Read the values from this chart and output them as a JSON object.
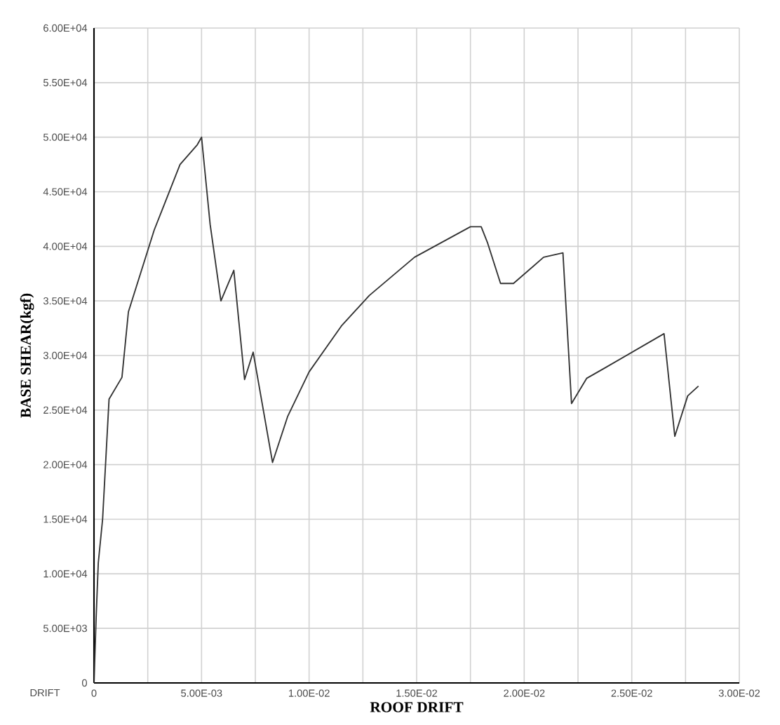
{
  "chart_data": {
    "type": "line",
    "xlabel": "ROOF DRIFT",
    "ylabel": "BASE SHEAR(kgf)",
    "annotations": [
      "DRIFT"
    ],
    "grid": true,
    "marker": "none",
    "line_style": "solid",
    "xlim": [
      0,
      0.03
    ],
    "ylim": [
      0,
      60000
    ],
    "xticks": [
      0,
      {
        "value": 0.0025,
        "label": null
      },
      {
        "value": 0.005,
        "label": "5.00E-03"
      },
      {
        "value": 0.0075,
        "label": null
      },
      {
        "value": 0.01,
        "label": "1.00E-02"
      },
      {
        "value": 0.0125,
        "label": null
      },
      {
        "value": 0.015,
        "label": "1.50E-02"
      },
      {
        "value": 0.0175,
        "label": null
      },
      {
        "value": 0.02,
        "label": "2.00E-02"
      },
      {
        "value": 0.0225,
        "label": null
      },
      {
        "value": 0.025,
        "label": "2.50E-02"
      },
      {
        "value": 0.0275,
        "label": null
      },
      {
        "value": 0.03,
        "label": "3.00E-02"
      }
    ],
    "yticks": [
      0,
      {
        "value": 5000,
        "label": "5.00E+03"
      },
      {
        "value": 10000,
        "label": "1.00E+04"
      },
      {
        "value": 15000,
        "label": "1.50E+04"
      },
      {
        "value": 20000,
        "label": "2.00E+04"
      },
      {
        "value": 25000,
        "label": "2.50E+04"
      },
      {
        "value": 30000,
        "label": "3.00E+04"
      },
      {
        "value": 35000,
        "label": "3.50E+04"
      },
      {
        "value": 40000,
        "label": "4.00E+04"
      },
      {
        "value": 45000,
        "label": "4.50E+04"
      },
      {
        "value": 50000,
        "label": "5.00E+04"
      },
      {
        "value": 55000,
        "label": "5.50E+04"
      },
      {
        "value": 60000,
        "label": "6.00E+04"
      }
    ],
    "series": [
      {
        "color": "#333333",
        "x": [
          0,
          0.0001,
          0.0002,
          0.0004,
          0.0007,
          0.0013,
          0.0016,
          0.0028,
          0.0032,
          0.004,
          0.0048,
          0.005,
          0.0054,
          0.0059,
          0.0065,
          0.007,
          0.0074,
          0.0083,
          0.009,
          0.01,
          0.0115,
          0.0128,
          0.0149,
          0.0175,
          0.018,
          0.0183,
          0.0189,
          0.0195,
          0.0209,
          0.0218,
          0.0222,
          0.0229,
          0.0237,
          0.0265,
          0.027,
          0.0276,
          0.0281
        ],
        "values": [
          0,
          6000,
          11000,
          15000,
          26000,
          28000,
          34000,
          41500,
          43500,
          47500,
          49300,
          50000,
          42000,
          35000,
          37800,
          27800,
          30300,
          20200,
          24400,
          28500,
          32700,
          35500,
          39000,
          41800,
          41800,
          40300,
          36600,
          36600,
          39000,
          39400,
          25600,
          27900,
          28800,
          32000,
          22600,
          26300,
          27200
        ]
      }
    ]
  }
}
